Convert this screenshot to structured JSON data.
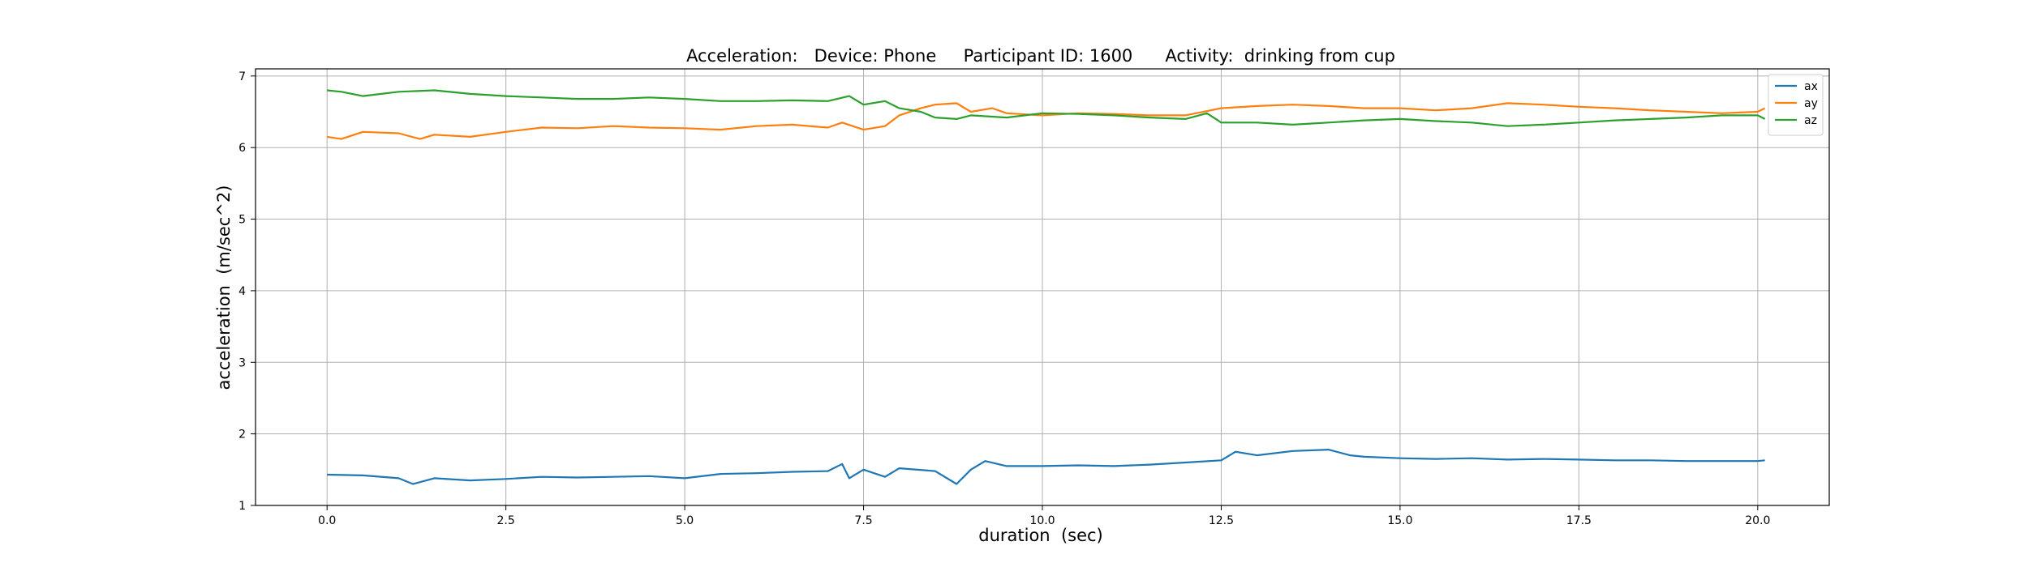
{
  "chart_data": {
    "type": "line",
    "title": "Acceleration:   Device: Phone     Participant ID: 1600      Activity:  drinking from cup",
    "xlabel": "duration  (sec)",
    "ylabel": "acceleration  (m/sec^2)",
    "xlim": [
      -1.0,
      21.0
    ],
    "ylim": [
      1.0,
      7.1
    ],
    "xticks": [
      0.0,
      2.5,
      5.0,
      7.5,
      10.0,
      12.5,
      15.0,
      17.5,
      20.0
    ],
    "xtick_labels": [
      "0.0",
      "2.5",
      "5.0",
      "7.5",
      "10.0",
      "12.5",
      "15.0",
      "17.5",
      "20.0"
    ],
    "yticks": [
      1,
      2,
      3,
      4,
      5,
      6,
      7
    ],
    "ytick_labels": [
      "1",
      "2",
      "3",
      "4",
      "5",
      "6",
      "7"
    ],
    "grid": true,
    "legend": "top-right",
    "series": [
      {
        "name": "ax",
        "color": "#1f77b4",
        "x": [
          0.0,
          0.5,
          1.0,
          1.2,
          1.5,
          2.0,
          2.5,
          3.0,
          3.5,
          4.0,
          4.5,
          5.0,
          5.5,
          6.0,
          6.5,
          7.0,
          7.2,
          7.3,
          7.5,
          7.8,
          8.0,
          8.5,
          8.8,
          9.0,
          9.2,
          9.5,
          10.0,
          10.5,
          11.0,
          11.5,
          12.0,
          12.5,
          12.7,
          13.0,
          13.5,
          14.0,
          14.3,
          14.5,
          15.0,
          15.5,
          16.0,
          16.5,
          17.0,
          17.5,
          18.0,
          18.5,
          19.0,
          19.5,
          20.0,
          20.1
        ],
        "y": [
          1.43,
          1.42,
          1.38,
          1.3,
          1.38,
          1.35,
          1.37,
          1.4,
          1.39,
          1.4,
          1.41,
          1.38,
          1.44,
          1.45,
          1.47,
          1.48,
          1.58,
          1.38,
          1.5,
          1.4,
          1.52,
          1.48,
          1.3,
          1.5,
          1.62,
          1.55,
          1.55,
          1.56,
          1.55,
          1.57,
          1.6,
          1.63,
          1.75,
          1.7,
          1.76,
          1.78,
          1.7,
          1.68,
          1.66,
          1.65,
          1.66,
          1.64,
          1.65,
          1.64,
          1.63,
          1.63,
          1.62,
          1.62,
          1.62,
          1.63
        ]
      },
      {
        "name": "ay",
        "color": "#ff7f0e",
        "x": [
          0.0,
          0.2,
          0.5,
          1.0,
          1.3,
          1.5,
          2.0,
          2.5,
          3.0,
          3.5,
          4.0,
          4.5,
          5.0,
          5.5,
          6.0,
          6.5,
          7.0,
          7.2,
          7.5,
          7.8,
          8.0,
          8.3,
          8.5,
          8.8,
          9.0,
          9.3,
          9.5,
          10.0,
          10.5,
          11.0,
          11.5,
          12.0,
          12.5,
          13.0,
          13.5,
          14.0,
          14.5,
          15.0,
          15.5,
          16.0,
          16.5,
          17.0,
          17.5,
          18.0,
          18.5,
          19.0,
          19.5,
          20.0,
          20.1
        ],
        "y": [
          6.15,
          6.12,
          6.22,
          6.2,
          6.12,
          6.18,
          6.15,
          6.22,
          6.28,
          6.27,
          6.3,
          6.28,
          6.27,
          6.25,
          6.3,
          6.32,
          6.28,
          6.35,
          6.25,
          6.3,
          6.45,
          6.55,
          6.6,
          6.62,
          6.5,
          6.55,
          6.48,
          6.45,
          6.48,
          6.47,
          6.45,
          6.45,
          6.55,
          6.58,
          6.6,
          6.58,
          6.55,
          6.55,
          6.52,
          6.55,
          6.62,
          6.6,
          6.57,
          6.55,
          6.52,
          6.5,
          6.48,
          6.5,
          6.55
        ]
      },
      {
        "name": "az",
        "color": "#2ca02c",
        "x": [
          0.0,
          0.2,
          0.5,
          1.0,
          1.5,
          2.0,
          2.5,
          3.0,
          3.5,
          4.0,
          4.5,
          5.0,
          5.5,
          6.0,
          6.5,
          7.0,
          7.3,
          7.5,
          7.8,
          8.0,
          8.3,
          8.5,
          8.8,
          9.0,
          9.5,
          10.0,
          10.5,
          11.0,
          11.5,
          12.0,
          12.3,
          12.5,
          13.0,
          13.5,
          14.0,
          14.5,
          15.0,
          15.5,
          16.0,
          16.5,
          17.0,
          17.5,
          18.0,
          18.5,
          19.0,
          19.5,
          20.0,
          20.1
        ],
        "y": [
          6.8,
          6.78,
          6.72,
          6.78,
          6.8,
          6.75,
          6.72,
          6.7,
          6.68,
          6.68,
          6.7,
          6.68,
          6.65,
          6.65,
          6.66,
          6.65,
          6.72,
          6.6,
          6.65,
          6.55,
          6.5,
          6.42,
          6.4,
          6.45,
          6.42,
          6.48,
          6.47,
          6.45,
          6.42,
          6.4,
          6.48,
          6.35,
          6.35,
          6.32,
          6.35,
          6.38,
          6.4,
          6.37,
          6.35,
          6.3,
          6.32,
          6.35,
          6.38,
          6.4,
          6.42,
          6.45,
          6.45,
          6.4
        ]
      }
    ]
  }
}
